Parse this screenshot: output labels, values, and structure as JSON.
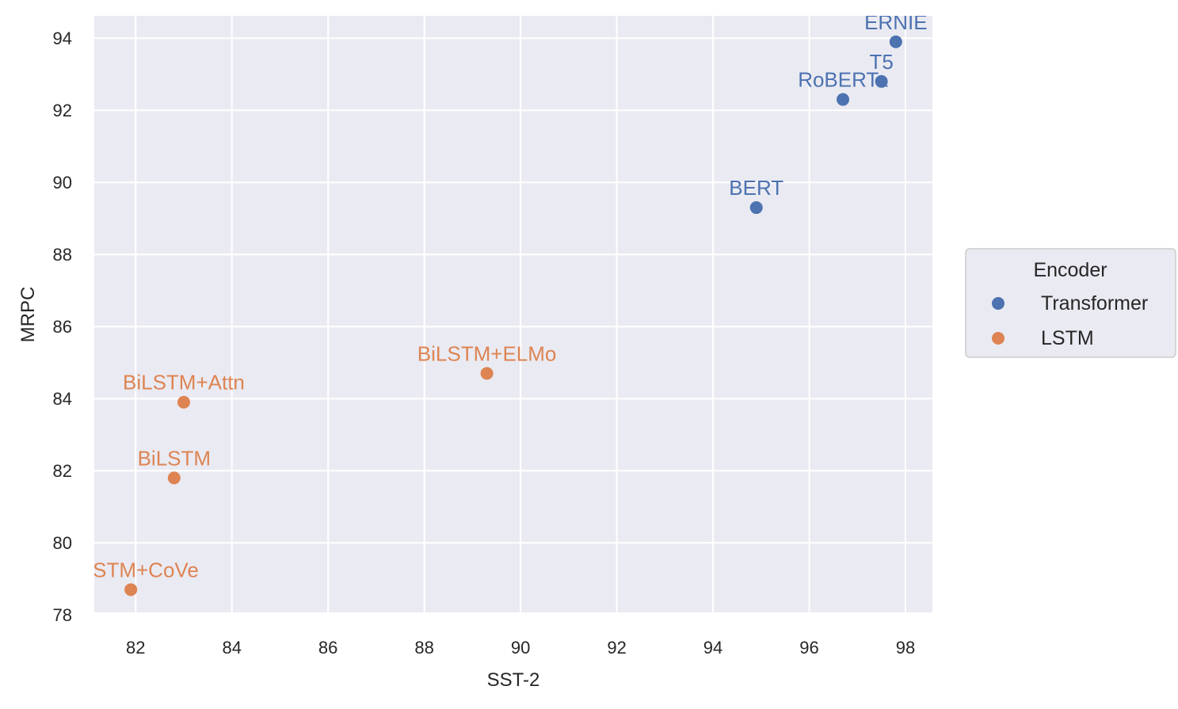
{
  "chart_data": {
    "type": "scatter",
    "xlabel": "SST-2",
    "ylabel": "MRPC",
    "xlim": [
      81.14,
      98.56
    ],
    "ylim": [
      78.07,
      94.62
    ],
    "xticks": [
      82,
      84,
      86,
      88,
      90,
      92,
      94,
      96,
      98
    ],
    "yticks": [
      78,
      80,
      82,
      84,
      86,
      88,
      90,
      92,
      94
    ],
    "grid": true,
    "legend": {
      "title": "Encoder",
      "placement": "right",
      "entries": [
        {
          "name": "Transformer",
          "color": "#4c72b0"
        },
        {
          "name": "LSTM",
          "color": "#dd8452"
        }
      ]
    },
    "points": [
      {
        "label": "ERNIE",
        "x": 97.8,
        "y": 93.9,
        "group": "Transformer"
      },
      {
        "label": "T5",
        "x": 97.5,
        "y": 92.8,
        "group": "Transformer"
      },
      {
        "label": "RoBERTa",
        "x": 96.7,
        "y": 92.3,
        "group": "Transformer"
      },
      {
        "label": "BERT",
        "x": 94.9,
        "y": 89.3,
        "group": "Transformer"
      },
      {
        "label": "BiLSTM+ELMo",
        "x": 89.3,
        "y": 84.7,
        "group": "LSTM"
      },
      {
        "label": "BiLSTM+Attn",
        "x": 83.0,
        "y": 83.9,
        "group": "LSTM"
      },
      {
        "label": "BiLSTM",
        "x": 82.8,
        "y": 81.8,
        "group": "LSTM"
      },
      {
        "label": "BiLSTM+CoVe",
        "x": 81.9,
        "y": 78.7,
        "group": "LSTM"
      }
    ]
  }
}
